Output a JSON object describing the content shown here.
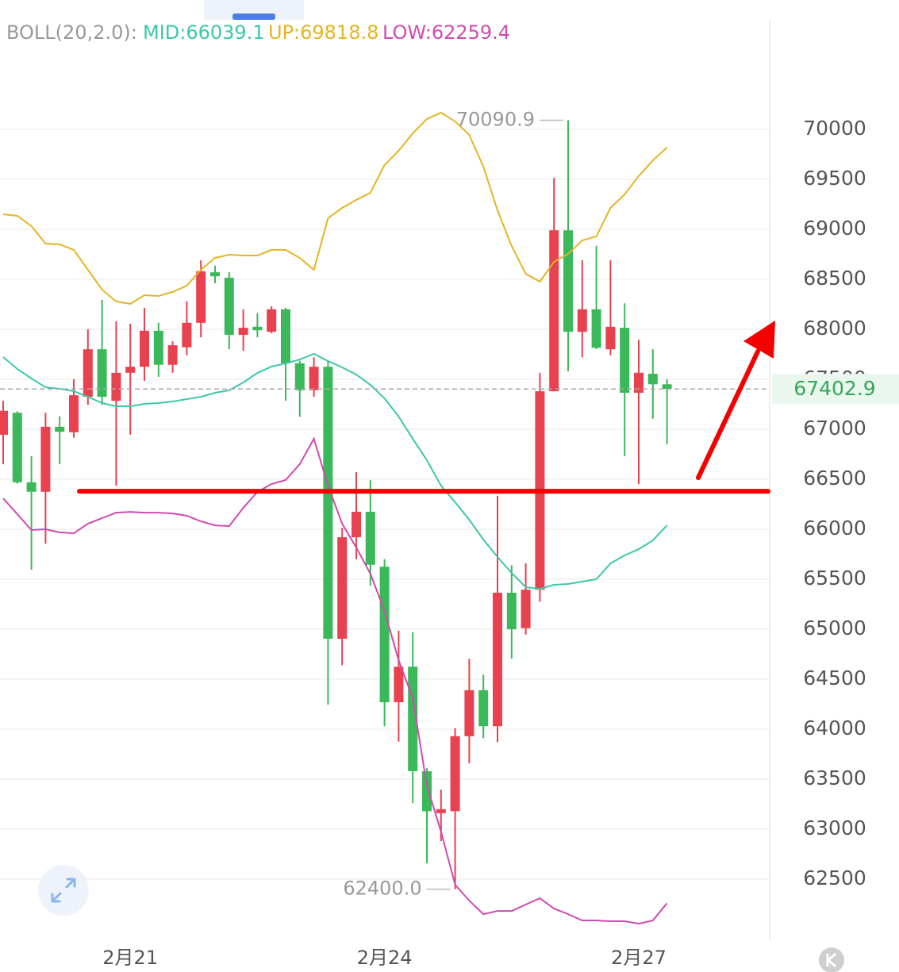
{
  "chart_data": {
    "type": "candlestick",
    "indicator_label": "BOLL(20,2.0):",
    "categories": [
      null,
      null,
      null,
      null,
      null,
      null,
      null,
      null,
      null,
      "2月21",
      null,
      null,
      null,
      null,
      null,
      null,
      null,
      null,
      null,
      null,
      null,
      null,
      null,
      null,
      null,
      null,
      null,
      "2月24",
      null,
      null,
      null,
      null,
      null,
      null,
      null,
      null,
      null,
      null,
      null,
      null,
      null,
      null,
      null,
      null,
      null,
      "2月27",
      null,
      null
    ],
    "open": [
      66945,
      67165,
      66470,
      66375,
      67025,
      66970,
      67325,
      67800,
      67285,
      67565,
      67625,
      67985,
      67645,
      67820,
      68065,
      68570,
      68515,
      67945,
      68025,
      67975,
      68200,
      67660,
      67390,
      67625,
      64905,
      65920,
      66175,
      65625,
      64270,
      64625,
      63580,
      63160,
      63180,
      63930,
      64390,
      64030,
      65365,
      65010,
      65395,
      67380,
      68990,
      67975,
      68200,
      67800,
      68015,
      67365,
      67555,
      67450
    ],
    "high": [
      67285,
      67180,
      66730,
      67165,
      67130,
      67500,
      68000,
      68295,
      68080,
      68055,
      68215,
      68065,
      67880,
      68280,
      68690,
      68635,
      68570,
      68200,
      68160,
      68230,
      68215,
      67685,
      67720,
      67685,
      66015,
      66570,
      66490,
      65700,
      64985,
      64970,
      63610,
      63395,
      64010,
      64705,
      64545,
      66335,
      65640,
      65660,
      67565,
      69515,
      70090.9,
      68690,
      68835,
      68690,
      68260,
      67895,
      67800,
      67500
    ],
    "low": [
      66650,
      66455,
      65595,
      65855,
      66650,
      66915,
      67245,
      67245,
      66435,
      66945,
      67485,
      67525,
      67565,
      67740,
      67920,
      68460,
      67800,
      67785,
      67920,
      67960,
      67285,
      67125,
      67325,
      64245,
      64640,
      65700,
      65435,
      64030,
      63875,
      63260,
      62660,
      62880,
      62400,
      63660,
      63910,
      63870,
      64705,
      64945,
      65275,
      67380,
      67580,
      67720,
      67800,
      67740,
      66730,
      66450,
      67105,
      66850
    ],
    "close": [
      67185,
      66470,
      66375,
      67025,
      66975,
      67340,
      67800,
      67325,
      67565,
      67625,
      67985,
      67645,
      67840,
      68065,
      68580,
      68530,
      67945,
      68015,
      67990,
      68200,
      67660,
      67390,
      67625,
      64905,
      65920,
      66175,
      65645,
      64270,
      64625,
      63580,
      63180,
      63200,
      63930,
      64390,
      64030,
      65365,
      65000,
      65395,
      67380,
      68990,
      67975,
      68200,
      67815,
      68025,
      67365,
      67565,
      67450,
      67402.9
    ],
    "up_color": "#e8414f",
    "down_color": "#3bb85a",
    "series": [
      {
        "name": "MID:66039.1",
        "color": "#3cc8a8",
        "values": [
          67722,
          67603,
          67508,
          67420,
          67405,
          67381,
          67325,
          67262,
          67230,
          67230,
          67254,
          67262,
          67278,
          67301,
          67325,
          67365,
          67389,
          67468,
          67563,
          67627,
          67659,
          67698,
          67754,
          67682,
          67619,
          67547,
          67444,
          67309,
          67127,
          66905,
          66690,
          66436,
          66270,
          66095,
          65897,
          65722,
          65563,
          65420,
          65404,
          65444,
          65452,
          65476,
          65500,
          65658,
          65738,
          65801,
          65889,
          66039.1
        ]
      },
      {
        "name": "UP:69818.8",
        "color": "#e6b422",
        "values": [
          69151,
          69135,
          69032,
          68857,
          68849,
          68794,
          68595,
          68397,
          68278,
          68254,
          68341,
          68333,
          68373,
          68436,
          68595,
          68714,
          68746,
          68738,
          68738,
          68794,
          68794,
          68714,
          68595,
          69111,
          69214,
          69294,
          69365,
          69643,
          69786,
          69960,
          70103,
          70167,
          70079,
          69944,
          69627,
          69190,
          68833,
          68555,
          68476,
          68675,
          68754,
          68889,
          68929,
          69214,
          69349,
          69532,
          69690,
          69818.8
        ]
      },
      {
        "name": "LOW:62259.4",
        "color": "#d04ab0",
        "values": [
          66309,
          66151,
          65992,
          66000,
          65968,
          65960,
          66055,
          66111,
          66166,
          66174,
          66166,
          66166,
          66158,
          66135,
          66079,
          66039,
          66031,
          66214,
          66373,
          66452,
          66492,
          66651,
          66905,
          66436,
          66055,
          65817,
          65555,
          65182,
          64690,
          64309,
          63436,
          62976,
          62444,
          62285,
          62150,
          62182,
          62182,
          62246,
          62309,
          62206,
          62150,
          62087,
          62087,
          62079,
          62079,
          62055,
          62087,
          62259.4
        ]
      }
    ],
    "ylim": [
      61889,
      71095
    ],
    "yticks": [
      62500,
      63000,
      63500,
      64000,
      64500,
      65000,
      65500,
      66000,
      66500,
      67000,
      67500,
      68000,
      68500,
      69000,
      69500,
      70000
    ],
    "grid": true,
    "last_price": 67402.9,
    "annotations": [
      {
        "value": 70090.9,
        "label": "70090.9"
      },
      {
        "value": 62400,
        "label": "62400.0"
      }
    ],
    "hline": {
      "value": 66380,
      "color": "#f40000"
    }
  }
}
